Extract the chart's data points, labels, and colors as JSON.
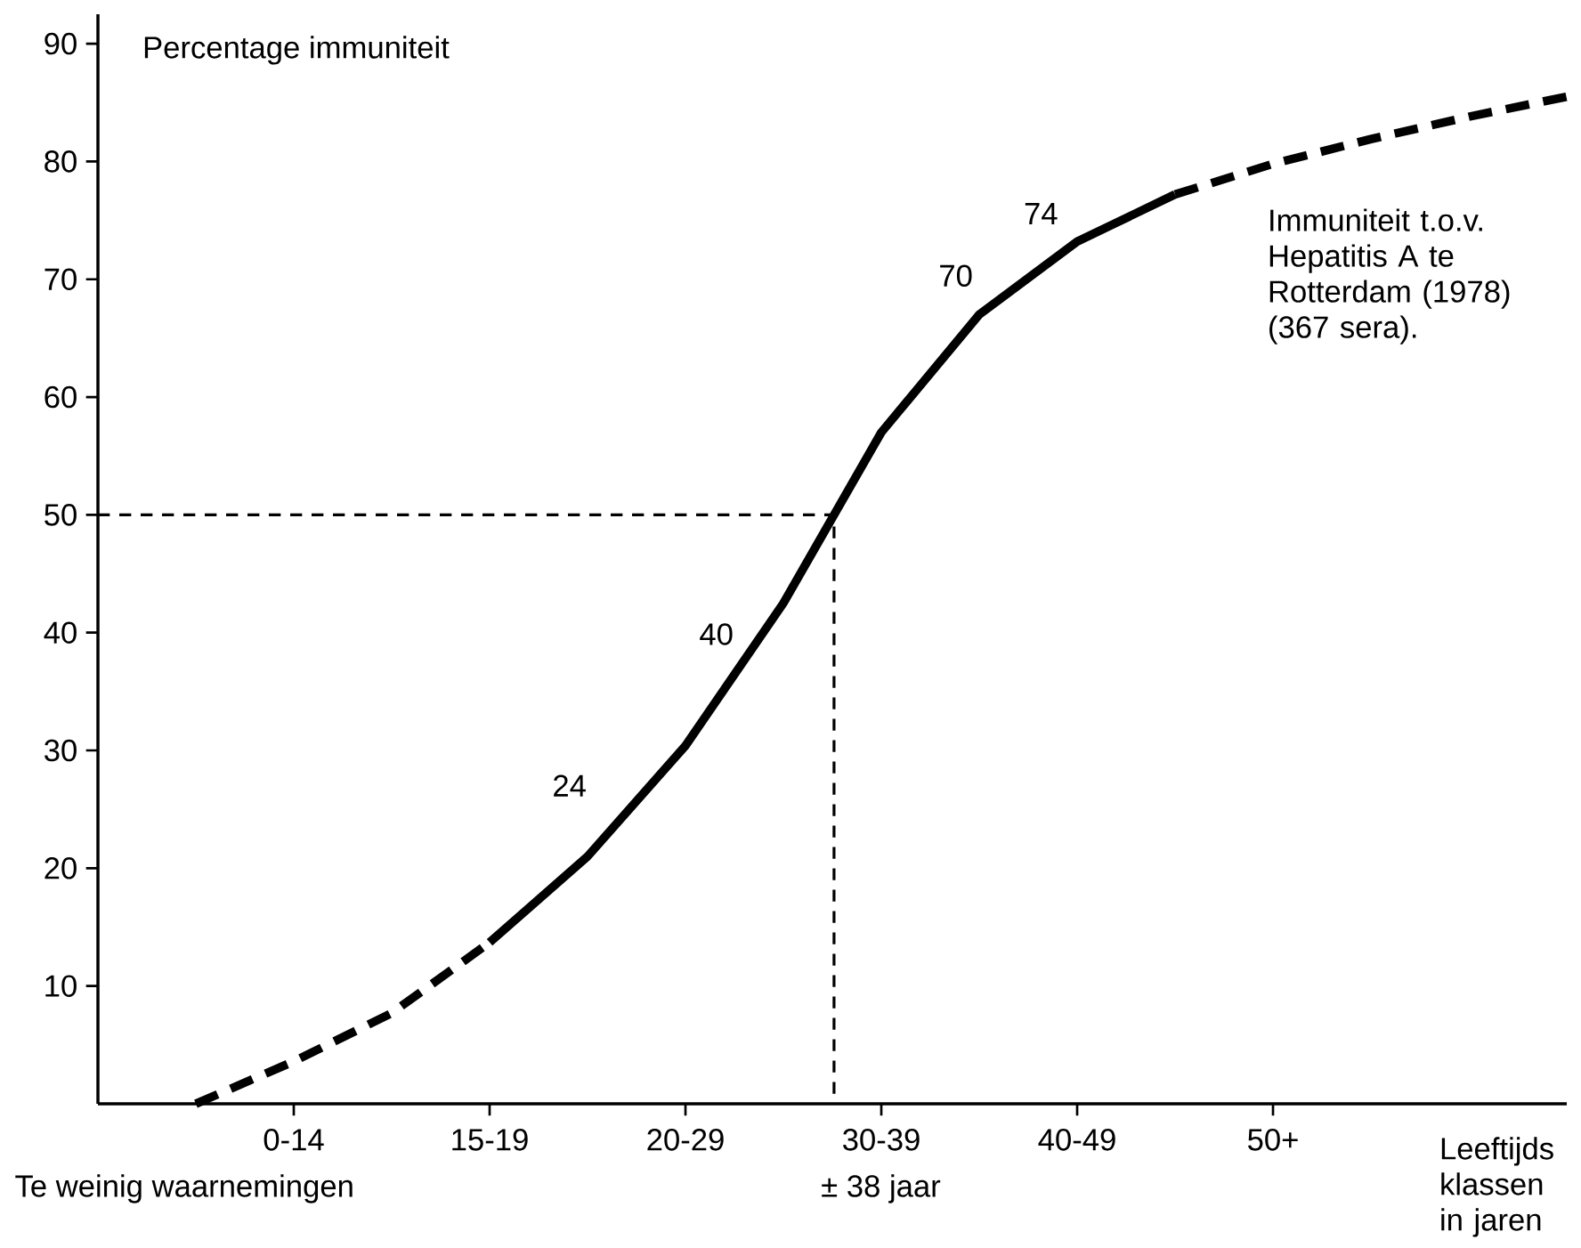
{
  "chart_data": {
    "type": "line",
    "xlabel": "Leeftijds klassen in jaren",
    "ylabel": "Percentage immuniteit",
    "categories": [
      null,
      null,
      "0-14",
      null,
      "15-19",
      null,
      "20-29",
      null,
      "30-39",
      null,
      "40-49",
      null,
      "50+",
      null,
      null,
      null
    ],
    "ylim": [
      0,
      92.5
    ],
    "yticks": [
      10,
      20,
      30,
      40,
      50,
      60,
      70,
      80,
      90
    ],
    "series": [
      {
        "color": "#000000",
        "line_style": "dashed",
        "values": [
          null,
          0,
          3.6,
          7.7,
          13.7,
          null,
          null,
          null,
          null,
          null,
          null,
          null,
          null,
          null,
          null,
          null
        ]
      },
      {
        "color": "#000000",
        "line_style": "solid",
        "values": [
          null,
          null,
          null,
          null,
          13.7,
          21,
          30.4,
          42.5,
          57,
          67,
          73.2,
          77.2,
          null,
          null,
          null,
          null
        ]
      },
      {
        "color": "#000000",
        "line_style": "dashed",
        "values": [
          null,
          null,
          null,
          null,
          null,
          null,
          null,
          null,
          null,
          null,
          null,
          77.2,
          79.8,
          81.9,
          83.8,
          85.5
        ]
      }
    ],
    "ref_lines": [
      {
        "axis": "y",
        "value": 50,
        "line_style": "dashed",
        "color": "#000000"
      }
    ],
    "annotations": [
      "24",
      "40",
      "70",
      "74",
      "Te weinig waarnemingen",
      "± 38 jaar",
      "Immuniteit t.o.v. Hepatitis A te Rotterdam (1978) (367 sera)."
    ]
  }
}
